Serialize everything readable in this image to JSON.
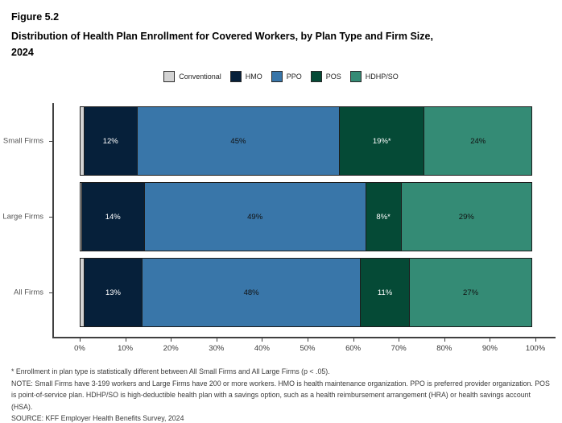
{
  "header": {
    "figure_label": "Figure 5.2",
    "title_line1": "Distribution of Health Plan Enrollment for Covered Workers, by Plan Type and Firm Size,",
    "title_line2": "2024"
  },
  "chart_data": {
    "type": "bar",
    "orientation": "horizontal",
    "stacked": true,
    "title": "Distribution of Health Plan Enrollment for Covered Workers, by Plan Type and Firm Size, 2024",
    "categories": [
      "Small Firms",
      "Large Firms",
      "All Firms"
    ],
    "series": [
      {
        "name": "Conventional",
        "color": "#d3d3d3",
        "label_color": "#1a1a1a",
        "values": [
          1,
          0.5,
          1
        ],
        "display_labels": [
          "",
          "",
          ""
        ]
      },
      {
        "name": "HMO",
        "color": "#06203a",
        "label_color": "#ffffff",
        "values": [
          12,
          14,
          13
        ],
        "display_labels": [
          "12%",
          "14%",
          "13%"
        ]
      },
      {
        "name": "PPO",
        "color": "#3976a9",
        "label_color": "#111111",
        "values": [
          45,
          49,
          48
        ],
        "display_labels": [
          "45%",
          "49%",
          "48%"
        ]
      },
      {
        "name": "POS",
        "color": "#054a36",
        "label_color": "#ffffff",
        "values": [
          19,
          8,
          11
        ],
        "display_labels": [
          "19%*",
          "8%*",
          "11%"
        ]
      },
      {
        "name": "HDHP/SO",
        "color": "#348b75",
        "label_color": "#111111",
        "values": [
          24,
          29,
          27
        ],
        "display_labels": [
          "24%",
          "29%",
          "27%"
        ]
      }
    ],
    "x_tick_labels": [
      "0%",
      "10%",
      "20%",
      "30%",
      "40%",
      "50%",
      "60%",
      "70%",
      "80%",
      "90%",
      "100%"
    ],
    "xlim": [
      0,
      100
    ],
    "grid": false,
    "legend_position": "top",
    "legend_labels": [
      "Conventional",
      "HMO",
      "PPO",
      "POS",
      "HDHP/SO"
    ]
  },
  "footnotes": [
    "* Enrollment in plan type is statistically different between All Small Firms and All Large Firms (p < .05).",
    "NOTE: Small Firms have 3-199 workers and Large Firms have 200 or more workers. HMO is health maintenance organization. PPO is preferred provider organization. POS is point-of-service plan. HDHP/SO is high-deductible health plan with a savings option, such as a health reimbursement arrangement (HRA) or health savings account (HSA).",
    "SOURCE: KFF Employer Health Benefits Survey, 2024"
  ]
}
